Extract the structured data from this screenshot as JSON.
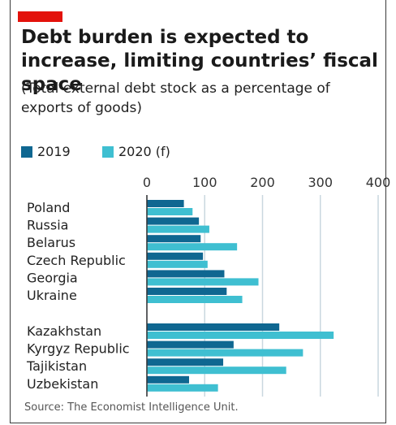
{
  "title": "Debt burden is expected to increase, limiting countries’ fiscal space",
  "subtitle": "(Total external debt stock as a percentage of exports of goods)",
  "source": "Source: The Economist Intelligence Unit.",
  "colors": {
    "accent": "#e3120b",
    "series_2019": "#0f6791",
    "series_2020": "#3fbfd1",
    "grid": "#c9d7df"
  },
  "chart_data": {
    "type": "bar",
    "orientation": "horizontal",
    "title": "Debt burden is expected to increase, limiting countries’ fiscal space",
    "subtitle": "(Total external debt stock as a percentage of exports of goods)",
    "xlim": [
      0,
      400
    ],
    "xticks": [
      0,
      100,
      200,
      300,
      400
    ],
    "grid": true,
    "legend_position": "top-left",
    "groups": [
      [
        "Poland",
        "Russia",
        "Belarus",
        "Czech Republic",
        "Georgia",
        "Ukraine"
      ],
      [
        "Kazakhstan",
        "Kyrgyz Republic",
        "Tajikistan",
        "Uzbekistan"
      ]
    ],
    "categories": [
      "Poland",
      "Russia",
      "Belarus",
      "Czech Republic",
      "Georgia",
      "Ukraine",
      "Kazakhstan",
      "Kyrgyz Republic",
      "Tajikistan",
      "Uzbekistan"
    ],
    "series": [
      {
        "name": "2019",
        "values": [
          64,
          90,
          93,
          97,
          134,
          138,
          229,
          150,
          132,
          73
        ]
      },
      {
        "name": "2020 (f)",
        "values": [
          79,
          108,
          156,
          105,
          193,
          165,
          323,
          270,
          241,
          123
        ]
      }
    ]
  }
}
